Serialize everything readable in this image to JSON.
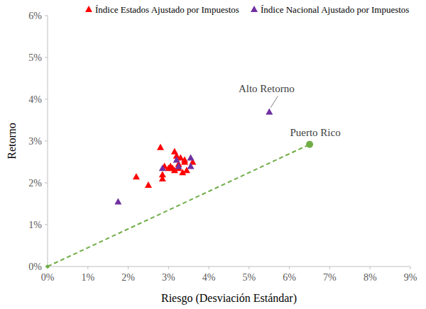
{
  "chart_data": {
    "type": "scatter",
    "x_label": "Riesgo (Desviación Estándar)",
    "y_label": "Retorno",
    "xlim": [
      0,
      9
    ],
    "ylim": [
      0,
      6
    ],
    "xticks": [
      {
        "value": 0,
        "label": "0%"
      },
      {
        "value": 1,
        "label": "1%"
      },
      {
        "value": 2,
        "label": "2%"
      },
      {
        "value": 3,
        "label": "3%"
      },
      {
        "value": 4,
        "label": "4%"
      },
      {
        "value": 5,
        "label": "5%"
      },
      {
        "value": 6,
        "label": "6%"
      },
      {
        "value": 7,
        "label": "7%"
      },
      {
        "value": 8,
        "label": "8%"
      },
      {
        "value": 9,
        "label": "9%"
      }
    ],
    "yticks": [
      {
        "value": 0,
        "label": "0%"
      },
      {
        "value": 1,
        "label": "1%"
      },
      {
        "value": 2,
        "label": "2%"
      },
      {
        "value": 3,
        "label": "3%"
      },
      {
        "value": 4,
        "label": "4%"
      },
      {
        "value": 5,
        "label": "5%"
      },
      {
        "value": 6,
        "label": "6%"
      }
    ],
    "grid": false,
    "legend": "top",
    "series": [
      {
        "name": "Índice Estados Ajustado por Impuestos",
        "color": "#ff0000",
        "marker": "triangle",
        "x": [
          2.8,
          2.2,
          2.5,
          2.85,
          2.85,
          2.9,
          3.0,
          3.05,
          3.15,
          3.15,
          3.2,
          3.25,
          3.3,
          3.35,
          3.4,
          3.45,
          3.4,
          3.6,
          3.1,
          3.25
        ],
        "values": [
          2.85,
          2.15,
          1.95,
          2.1,
          2.2,
          2.4,
          2.35,
          2.4,
          2.3,
          2.75,
          2.65,
          2.45,
          2.6,
          2.25,
          2.55,
          2.3,
          2.5,
          2.5,
          2.35,
          2.35
        ]
      },
      {
        "name": "Índice Nacional Ajustado por Impuestos",
        "color": "#7030a0",
        "marker": "triangle",
        "x": [
          1.75,
          2.85,
          3.2,
          3.25,
          3.55,
          3.55,
          5.5
        ],
        "values": [
          1.55,
          2.35,
          2.55,
          2.4,
          2.6,
          2.4,
          3.7
        ]
      }
    ],
    "annotations": [
      {
        "text": "Alto Retorno",
        "x": 5.5,
        "y": 3.7
      }
    ],
    "highlight": {
      "label": "Puerto Rico",
      "x": [
        0,
        6.5
      ],
      "y": [
        0,
        2.92
      ],
      "color": "#70ad47",
      "line_style": "dashed",
      "marker": "circle"
    }
  }
}
